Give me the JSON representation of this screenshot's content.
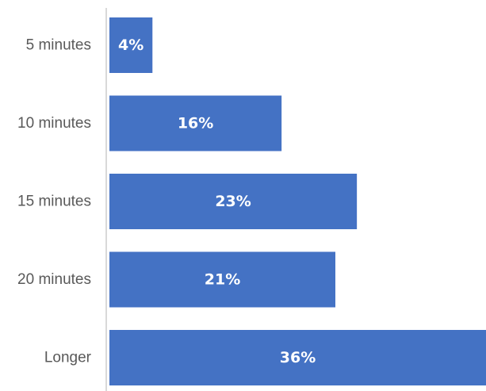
{
  "chart_data": {
    "type": "bar",
    "orientation": "horizontal",
    "categories": [
      "5 minutes",
      "10 minutes",
      "15 minutes",
      "20 minutes",
      "Longer"
    ],
    "values": [
      4,
      16,
      23,
      21,
      36
    ],
    "data_labels": [
      "4%",
      "16%",
      "23%",
      "21%",
      "36%"
    ],
    "title": "",
    "xlabel": "",
    "ylabel": "",
    "xlim": [
      0,
      35
    ],
    "grid": false,
    "legend": "none",
    "colors": {
      "bar": "#4472C4",
      "axis": "#D9D9D9",
      "category_text": "#595959",
      "data_label_text": "#FFFFFF"
    }
  }
}
